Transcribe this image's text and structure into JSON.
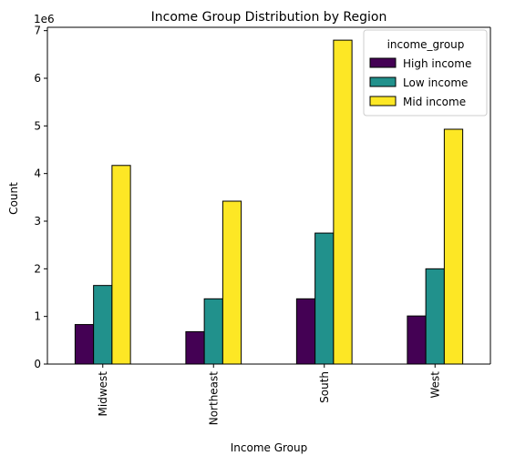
{
  "chart_data": {
    "type": "bar",
    "title": "Income Group Distribution by Region",
    "xlabel": "Income Group",
    "ylabel": "Count",
    "scale_label": "1e6",
    "categories": [
      "Midwest",
      "Northeast",
      "South",
      "West"
    ],
    "series": [
      {
        "name": "High income",
        "color": "#440154",
        "values": [
          0.83,
          0.68,
          1.37,
          1.01
        ]
      },
      {
        "name": "Low income",
        "color": "#21918c",
        "values": [
          1.65,
          1.37,
          2.75,
          2.0
        ]
      },
      {
        "name": "Mid income",
        "color": "#fde725",
        "values": [
          4.17,
          3.42,
          6.8,
          4.93
        ]
      }
    ],
    "ylim": [
      0,
      7.07
    ],
    "yticks": [
      "0",
      "1",
      "2",
      "3",
      "4",
      "5",
      "6",
      "7"
    ],
    "grid": false,
    "legend": {
      "title": "income_group",
      "placement": "top-right"
    }
  }
}
